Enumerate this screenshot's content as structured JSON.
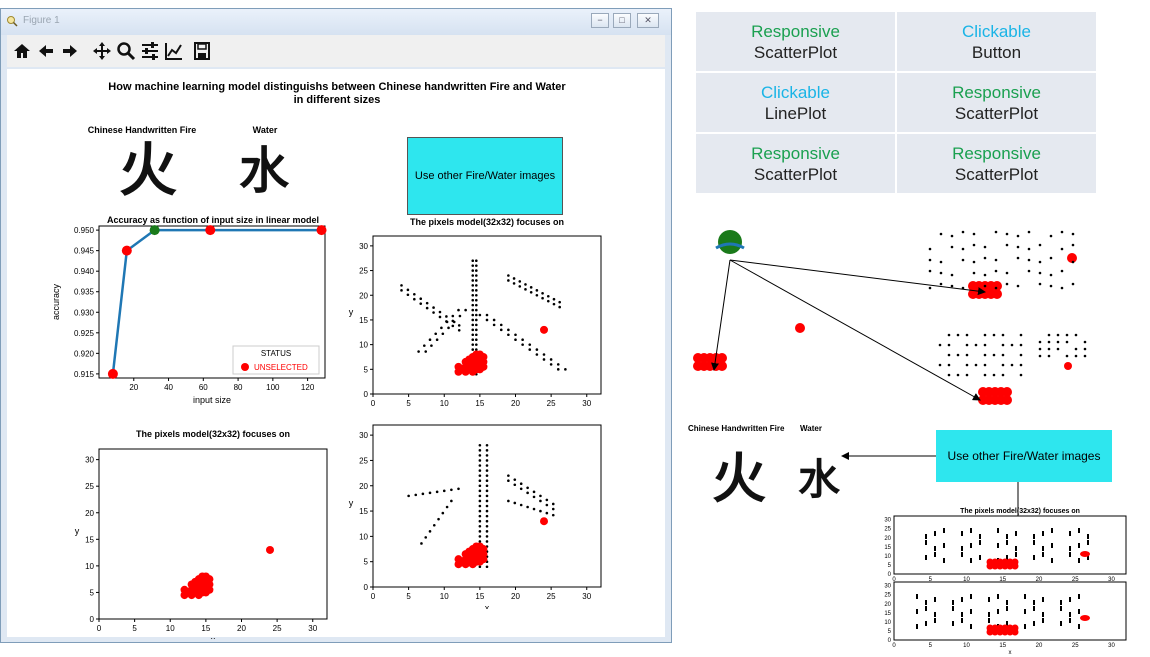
{
  "window": {
    "title": "Figure 1",
    "controls": [
      "−",
      "□",
      "✕"
    ]
  },
  "toolbar": {
    "icons": [
      "home-icon",
      "back-icon",
      "forward-icon",
      "pan-icon",
      "zoom-icon",
      "configure-subplots-icon",
      "edit-axis-icon",
      "save-icon"
    ],
    "glyphs": [
      "⌂",
      "←",
      "→",
      "✥",
      "🔍",
      "☰",
      "⟋",
      "💾"
    ]
  },
  "figure": {
    "title_line1": "How machine learning model distinguishs between Chinese handwritten Fire and Water",
    "title_line2": "in different sizes",
    "fire_label": "Chinese Handwritten Fire",
    "water_label": "Water",
    "fire_char": "火",
    "water_char": "水",
    "button_label": "Use other Fire/Water images"
  },
  "colors": {
    "line": "#1f77b4",
    "selected": "#1a7a1a",
    "unselected": "#ff0000",
    "button": "#2ee6ee",
    "green_text": "#1aa050",
    "blue_text": "#1ab4e6"
  },
  "chart_data": [
    {
      "type": "line",
      "title": "Accuracy as function of input size in linear model",
      "xlabel": "input size",
      "ylabel": "accuracy",
      "x": [
        8,
        16,
        32,
        64,
        128
      ],
      "y": [
        0.915,
        0.945,
        0.95,
        0.95,
        0.95
      ],
      "selected_index": 2,
      "xlim": [
        0,
        130
      ],
      "ylim": [
        0.914,
        0.951
      ],
      "xticks": [
        "20",
        "40",
        "60",
        "80",
        "100",
        "120"
      ],
      "yticks": [
        "0.915",
        "0.920",
        "0.925",
        "0.930",
        "0.935",
        "0.940",
        "0.945",
        "0.950"
      ],
      "legend": {
        "title": "STATUS",
        "entry": "UNSELECTED",
        "placement": "lower right"
      }
    },
    {
      "type": "scatter",
      "title": "The pixels model(32x32) focuses on",
      "xlabel": "",
      "ylabel": "y",
      "xlim": [
        0,
        32
      ],
      "ylim": [
        0,
        32
      ],
      "xticks": [
        "0",
        "5",
        "10",
        "15",
        "20",
        "25",
        "30"
      ],
      "yticks": [
        "0",
        "5",
        "10",
        "15",
        "20",
        "25",
        "30"
      ],
      "char": "fire"
    },
    {
      "type": "scatter",
      "title": "The pixels model(32x32) focuses on",
      "xlabel": "x",
      "ylabel": "y",
      "xlim": [
        0,
        32
      ],
      "ylim": [
        0,
        32
      ],
      "xticks": [
        "0",
        "5",
        "10",
        "15",
        "20",
        "25",
        "30"
      ],
      "yticks": [
        "0",
        "5",
        "10",
        "15",
        "20",
        "25",
        "30"
      ],
      "char": "none"
    },
    {
      "type": "scatter",
      "title": "",
      "xlabel": "x",
      "ylabel": "y",
      "xlim": [
        0,
        32
      ],
      "ylim": [
        0,
        32
      ],
      "xticks": [
        "0",
        "5",
        "10",
        "15",
        "20",
        "25",
        "30"
      ],
      "yticks": [
        "0",
        "5",
        "10",
        "15",
        "20",
        "25",
        "30"
      ],
      "char": "water"
    }
  ],
  "red_points": [
    [
      12,
      4.5
    ],
    [
      12,
      5.5
    ],
    [
      12.5,
      5
    ],
    [
      13,
      4.5
    ],
    [
      13,
      5.5
    ],
    [
      13,
      6.5
    ],
    [
      13.5,
      5
    ],
    [
      13.5,
      6
    ],
    [
      13.5,
      7
    ],
    [
      14,
      4.5
    ],
    [
      14,
      5.5
    ],
    [
      14,
      6.5
    ],
    [
      14,
      7.5
    ],
    [
      14.5,
      5
    ],
    [
      14.5,
      6
    ],
    [
      14.5,
      7
    ],
    [
      14.5,
      8
    ],
    [
      15,
      5
    ],
    [
      15,
      6
    ],
    [
      15,
      7
    ],
    [
      15,
      8
    ],
    [
      15.5,
      5.5
    ],
    [
      15.5,
      6.5
    ],
    [
      15.5,
      7.5
    ],
    [
      24,
      13
    ]
  ],
  "legend_table": [
    [
      {
        "status": "Responsive",
        "widget": "ScatterPlot",
        "color": "green"
      },
      {
        "status": "Clickable",
        "widget": "Button",
        "color": "blue"
      }
    ],
    [
      {
        "status": "Clickable",
        "widget": "LinePlot",
        "color": "blue"
      },
      {
        "status": "Responsive",
        "widget": "ScatterPlot",
        "color": "green"
      }
    ],
    [
      {
        "status": "Responsive",
        "widget": "ScatterPlot",
        "color": "green"
      },
      {
        "status": "Responsive",
        "widget": "ScatterPlot",
        "color": "green"
      }
    ]
  ],
  "diagram": {
    "fire_label": "Chinese Handwritten Fire",
    "water_label": "Water",
    "button_label": "Use other Fire/Water images",
    "thumb_title": "The pixels model(32x32) focuses on",
    "thumb_xticks": [
      "0",
      "5",
      "10",
      "15",
      "20",
      "25",
      "30"
    ],
    "thumb_yticks": [
      "0",
      "5",
      "10",
      "15",
      "20",
      "25",
      "30"
    ],
    "thumb_xlabel": "x"
  }
}
